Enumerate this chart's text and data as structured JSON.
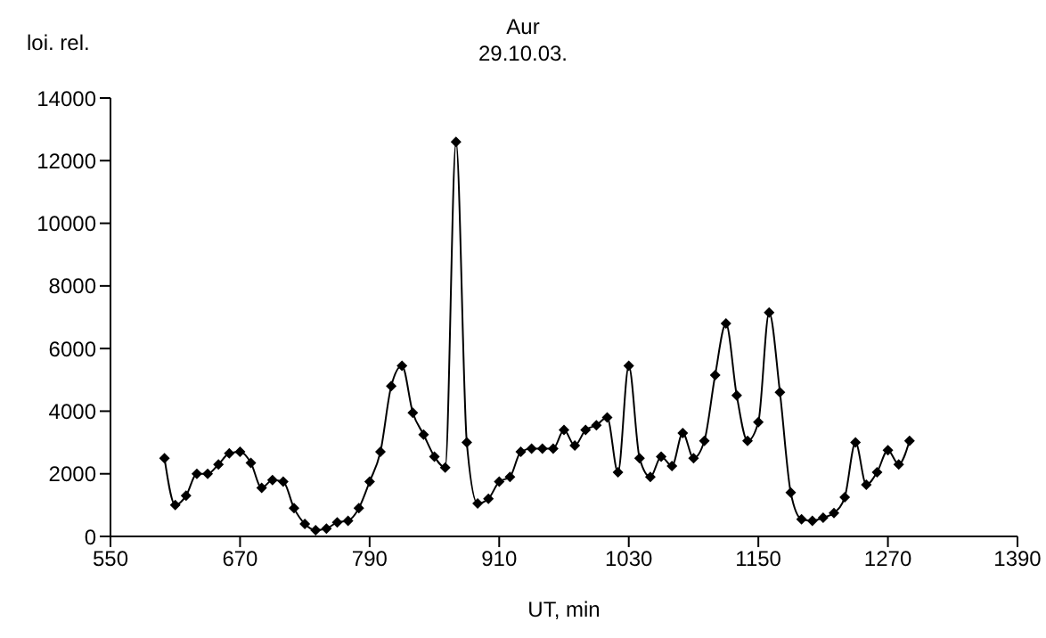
{
  "chart_data": {
    "type": "line",
    "title": "Aur",
    "subtitle": "29.10.03.",
    "xlabel": "UT, min",
    "ylabel": "loi. rel.",
    "x": [
      600,
      610,
      620,
      630,
      640,
      650,
      660,
      670,
      680,
      690,
      700,
      710,
      720,
      730,
      740,
      750,
      760,
      770,
      780,
      790,
      800,
      810,
      820,
      830,
      840,
      850,
      860,
      870,
      880,
      890,
      900,
      910,
      920,
      930,
      940,
      950,
      960,
      970,
      980,
      990,
      1000,
      1010,
      1020,
      1030,
      1040,
      1050,
      1060,
      1070,
      1080,
      1090,
      1100,
      1110,
      1120,
      1130,
      1140,
      1150,
      1160,
      1170,
      1180,
      1190,
      1200,
      1210,
      1220,
      1230,
      1240,
      1250,
      1260,
      1270,
      1280,
      1290
    ],
    "series": [
      {
        "color": "#000000",
        "values": [
          2500,
          1000,
          1300,
          2000,
          2000,
          2300,
          2650,
          2700,
          2350,
          1550,
          1800,
          1750,
          900,
          400,
          200,
          250,
          450,
          500,
          900,
          1750,
          2700,
          4800,
          5450,
          3950,
          3250,
          2550,
          2200,
          12600,
          3000,
          1050,
          1200,
          1750,
          1900,
          2700,
          2800,
          2800,
          2800,
          3400,
          2900,
          3400,
          3550,
          3800,
          2050,
          5450,
          2500,
          1900,
          2550,
          2250,
          3300,
          2500,
          3050,
          5150,
          6800,
          4500,
          3050,
          3650,
          7150,
          4600,
          1400,
          550,
          500,
          600,
          750,
          1250,
          3000,
          1650,
          2050,
          2750,
          2300,
          3050
        ]
      }
    ],
    "xlim": [
      550,
      1390
    ],
    "xticks": [
      550,
      670,
      790,
      910,
      1030,
      1150,
      1270,
      1390
    ],
    "ylim": [
      0,
      14000
    ],
    "yticks": [
      0,
      2000,
      4000,
      6000,
      8000,
      10000,
      12000,
      14000
    ],
    "grid": false,
    "legend": false,
    "marker": "diamond",
    "line_style": "solid"
  }
}
